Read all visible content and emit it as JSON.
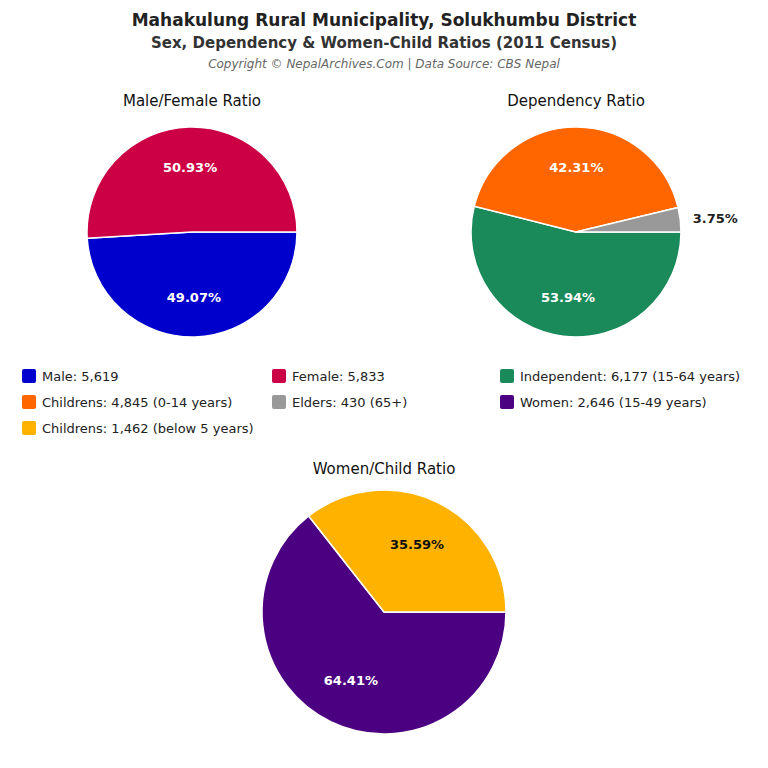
{
  "title": "Mahakulung Rural Municipality, Solukhumbu District",
  "subtitle": "Sex, Dependency & Women-Child Ratios (2011 Census)",
  "annotations": [
    "Copyright © NepalArchives.Com | Data Source: CBS Nepal"
  ],
  "chart_data": [
    {
      "type": "pie",
      "title": "Male/Female Ratio",
      "categories": [
        "Male: 5,619",
        "Female: 5,833"
      ],
      "values": [
        49.07,
        50.93
      ],
      "value_labels": [
        "49.07%",
        "50.93%"
      ],
      "colors": [
        "#0000CC",
        "#CC0044"
      ],
      "data_labels": true,
      "legend": "bottom"
    },
    {
      "type": "pie",
      "title": "Dependency Ratio",
      "categories": [
        "Independent: 6,177 (15-64 years)",
        "Childrens: 4,845 (0-14 years)",
        "Elders: 430 (65+)"
      ],
      "values": [
        53.94,
        42.31,
        3.75
      ],
      "value_labels": [
        "53.94%",
        "42.31%",
        "3.75%"
      ],
      "colors": [
        "#1a8a5a",
        "#FF6600",
        "#999999"
      ],
      "data_labels": true,
      "legend": "bottom"
    },
    {
      "type": "pie",
      "title": "Women/Child Ratio",
      "categories": [
        "Women: 2,646 (15-49 years)",
        "Childrens: 1,462 (below 5 years)"
      ],
      "values": [
        64.41,
        35.59
      ],
      "value_labels": [
        "64.41%",
        "35.59%"
      ],
      "colors": [
        "#4B0082",
        "#FFB300"
      ],
      "data_labels": true,
      "legend": "top"
    }
  ]
}
